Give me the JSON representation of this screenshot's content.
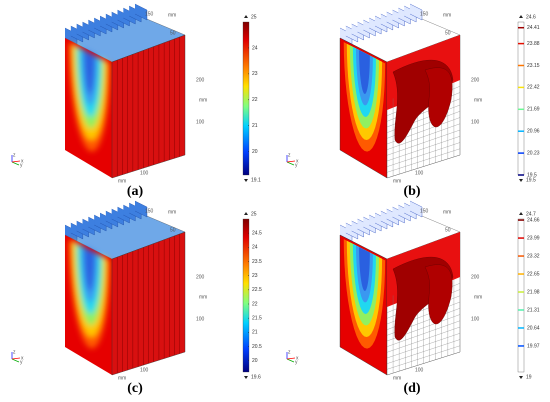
{
  "panels": [
    {
      "label": "(a)",
      "colorbar": {
        "style": "continuous",
        "max": 25,
        "min": 19.1,
        "ticks": [
          24,
          23,
          22,
          21,
          20
        ]
      },
      "axis_labels": [
        "150",
        "mm",
        "50",
        "200",
        "mm",
        "100",
        "100",
        "mm"
      ]
    },
    {
      "label": "(b)",
      "colorbar": {
        "style": "discrete",
        "max": 24.6,
        "min": 19.5,
        "ticks": [
          24.41,
          23.88,
          23.15,
          22.42,
          21.69,
          20.96,
          20.23,
          19.5
        ]
      },
      "axis_labels": [
        "150",
        "mm",
        "50",
        "200",
        "mm",
        "100",
        "100",
        "mm"
      ]
    },
    {
      "label": "(c)",
      "colorbar": {
        "style": "continuous",
        "max": 25,
        "min": 19.6,
        "ticks": [
          24.5,
          24,
          23.5,
          23,
          22.5,
          22,
          21.5,
          21,
          20.5,
          20
        ]
      },
      "axis_labels": [
        "150",
        "mm",
        "50",
        "200",
        "mm",
        "100",
        "100",
        "mm"
      ]
    },
    {
      "label": "(d)",
      "colorbar": {
        "style": "discrete",
        "max": 24.7,
        "min": 19,
        "ticks": [
          24.66,
          23.99,
          23.32,
          22.65,
          21.98,
          21.31,
          20.64,
          19.97
        ]
      },
      "axis_labels": [
        "150",
        "mm",
        "50",
        "200",
        "mm",
        "100",
        "100",
        "mm"
      ]
    }
  ],
  "triad": [
    "z",
    "y",
    "x"
  ]
}
